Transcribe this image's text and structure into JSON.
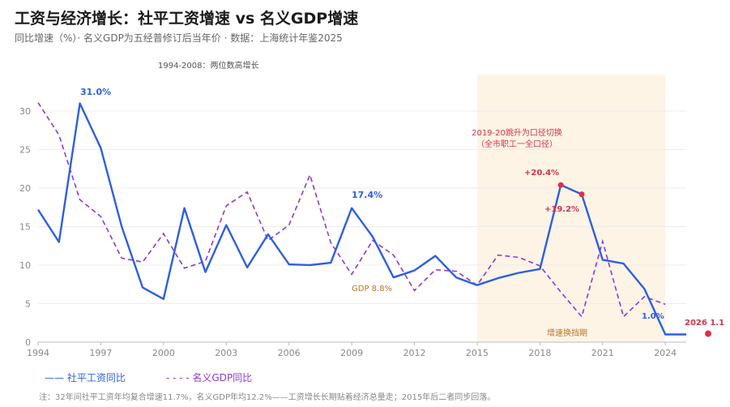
{
  "header": {
    "title": "工资与经济增长：社平工资增速 vs 名义GDP增速",
    "subtitle": "同比增速（%）· 名义GDP为五经普修订后当年价 · 数据：上海统计年鉴2025"
  },
  "legend": {
    "wage": "—— 社平工资同比",
    "gdp": "- - - -  名义GDP同比"
  },
  "footnote": "注：32年间社平工资年均复合增速11.7%，名义GDP年均12.2%——工资增长长期贴着经济总量走；2015年后二者同步回落。",
  "annotations": {
    "early_note": "1994-2008：两位数高增长",
    "peak_1996": "31.0%",
    "peak_2009": "17.4%",
    "gdp_2009": "GDP 8.8%",
    "switch_line1": "2019-20跳升为口径切换",
    "switch_line2": "（全市职工一全口径）",
    "v2019": "+20.4%",
    "v2020": "+19.2%",
    "v2024": "1.0%",
    "v2026": "2026 1.1",
    "shift_note": "增速换挡期"
  },
  "colors": {
    "wage": "#2d5fde",
    "gdp": "#8b3ad6",
    "highlight": "#e0304a",
    "band": "#fdf4e6",
    "note": "#b8762a"
  },
  "chart_data": {
    "type": "line",
    "x": [
      1994,
      1995,
      1996,
      1997,
      1998,
      1999,
      2000,
      2001,
      2002,
      2003,
      2004,
      2005,
      2006,
      2007,
      2008,
      2009,
      2010,
      2011,
      2012,
      2013,
      2014,
      2015,
      2016,
      2017,
      2018,
      2019,
      2020,
      2021,
      2022,
      2023,
      2024,
      2025
    ],
    "series": [
      {
        "name": "社平工资同比",
        "values": [
          17.2,
          13.0,
          31.0,
          25.2,
          15.0,
          7.1,
          5.6,
          17.4,
          9.1,
          15.2,
          9.7,
          14.0,
          10.1,
          10.0,
          10.3,
          17.4,
          13.7,
          8.4,
          9.3,
          11.2,
          8.4,
          7.4,
          8.3,
          9.0,
          9.5,
          20.4,
          19.2,
          10.7,
          10.2,
          6.9,
          1.0,
          1.0
        ]
      },
      {
        "name": "名义GDP同比",
        "values": [
          31.1,
          26.9,
          18.5,
          16.3,
          10.9,
          10.4,
          14.1,
          9.6,
          10.5,
          17.7,
          19.5,
          13.2,
          15.2,
          21.7,
          12.9,
          8.8,
          13.2,
          11.3,
          6.7,
          9.4,
          9.2,
          7.4,
          11.3,
          11.0,
          9.9,
          6.5,
          3.3,
          13.1,
          3.3,
          5.9,
          4.9,
          null
        ]
      }
    ],
    "extra_point": {
      "x": 2026,
      "y": 1.1
    },
    "xticks": [
      1994,
      1997,
      2000,
      2003,
      2006,
      2009,
      2012,
      2015,
      2018,
      2021,
      2024
    ],
    "yticks": [
      0,
      5,
      10,
      15,
      20,
      25,
      30
    ],
    "xlim": [
      1994,
      2025
    ],
    "ylim": [
      0,
      32
    ],
    "grid": "horizontal",
    "shaded_range": [
      2015,
      2024
    ]
  }
}
